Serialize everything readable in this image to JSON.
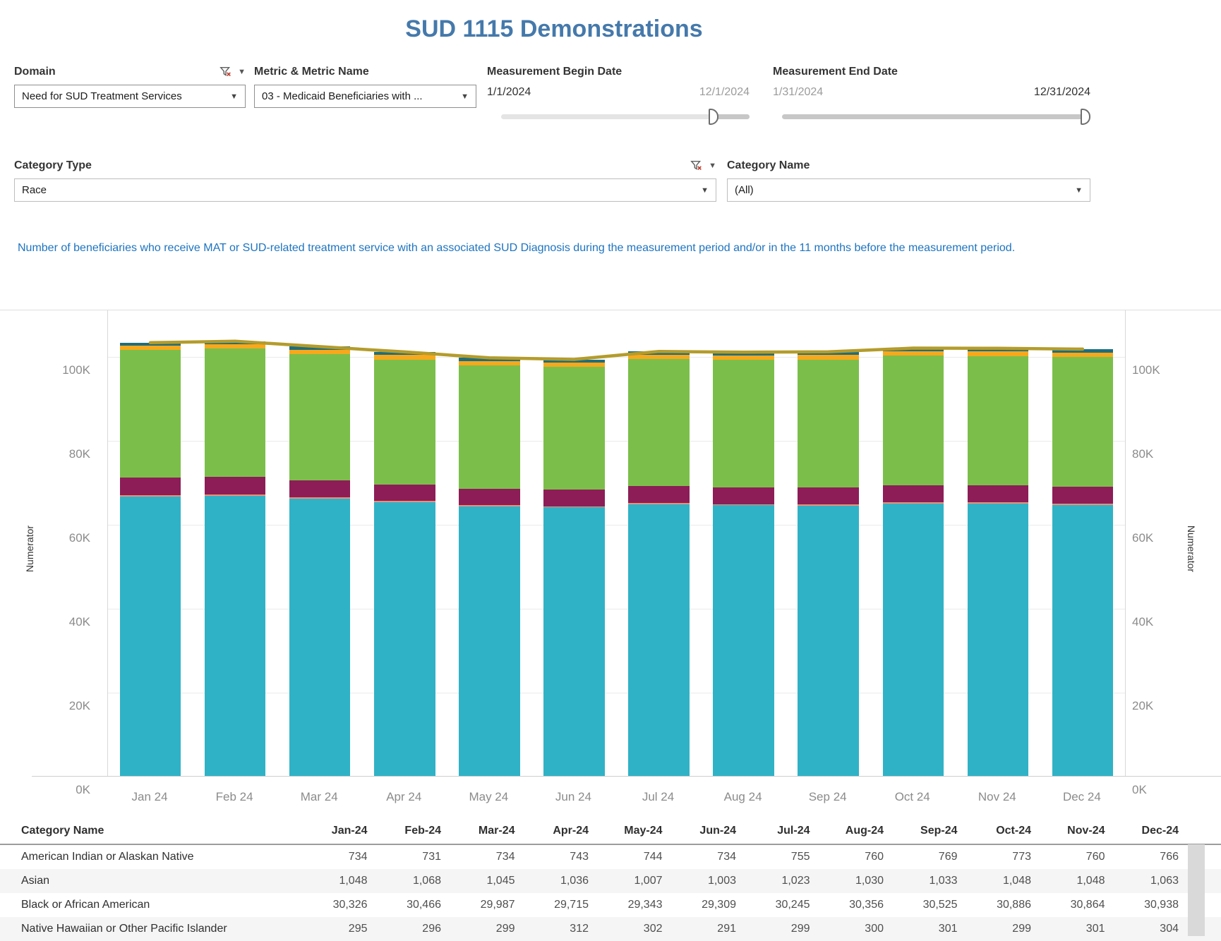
{
  "title": "SUD 1115 Demonstrations",
  "filters": {
    "domain": {
      "label": "Domain",
      "value": "Need for SUD Treatment Services"
    },
    "metric": {
      "label": "Metric & Metric Name",
      "value": "03 - Medicaid Beneficiaries with ..."
    },
    "begin_date": {
      "label": "Measurement Begin Date",
      "min": "1/1/2024",
      "max": "12/1/2024",
      "handle_pos": 0.857
    },
    "end_date": {
      "label": "Measurement End Date",
      "min": "1/31/2024",
      "max": "12/31/2024",
      "handle_pos": 1.0
    },
    "category_type": {
      "label": "Category Type",
      "value": "Race"
    },
    "category_name": {
      "label": "Category Name",
      "value": "(All)"
    }
  },
  "icons": {
    "funnel_clear": "filter-with-red-x",
    "caret": "▼"
  },
  "description": "Number of beneficiaries who receive MAT or SUD-related treatment service with an associated SUD Diagnosis during the measurement period and/or in the 11 months before the measurement period.",
  "chart_data": {
    "type": "bar",
    "stacked": true,
    "x": [
      "Jan 24",
      "Feb 24",
      "Mar 24",
      "Apr 24",
      "May 24",
      "Jun 24",
      "Jul 24",
      "Aug 24",
      "Sep 24",
      "Oct 24",
      "Nov 24",
      "Dec 24"
    ],
    "ylabel_left": "Numerator",
    "ylabel_right": "Numerator",
    "ylim": [
      0,
      111000
    ],
    "yticks": [
      {
        "label": "0K",
        "value": 0
      },
      {
        "label": "20K",
        "value": 20000
      },
      {
        "label": "40K",
        "value": 40000
      },
      {
        "label": "60K",
        "value": 60000
      },
      {
        "label": "80K",
        "value": 80000
      },
      {
        "label": "100K",
        "value": 100000
      }
    ],
    "grid": true,
    "legend": "not shown on screen",
    "series": [
      {
        "name": "(unlabeled bottom segment)",
        "color": "#30b2c6",
        "values": [
          66700,
          66900,
          66200,
          65300,
          64400,
          64100,
          64900,
          64600,
          64500,
          65000,
          65000,
          64700
        ]
      },
      {
        "name": "Native Hawaiian or Other Pacific Islander",
        "color": "#ea9178",
        "values": [
          295,
          296,
          299,
          312,
          302,
          291,
          299,
          300,
          301,
          299,
          301,
          304
        ]
      },
      {
        "name": "(unlabeled magenta segment)",
        "color": "#8c1d57",
        "values": [
          4200,
          4200,
          4100,
          4000,
          3900,
          3900,
          4000,
          4000,
          4000,
          4000,
          4000,
          4000
        ]
      },
      {
        "name": "Black or African American",
        "color": "#7bbf4a",
        "values": [
          30326,
          30466,
          29987,
          29715,
          29343,
          29309,
          30245,
          30356,
          30525,
          30886,
          30864,
          30938
        ]
      },
      {
        "name": "Asian",
        "color": "#f8a81c",
        "values": [
          1048,
          1068,
          1045,
          1036,
          1007,
          1003,
          1023,
          1030,
          1033,
          1048,
          1048,
          1063
        ]
      },
      {
        "name": "American Indian or Alaskan Native",
        "color": "#1d6e7e",
        "values": [
          734,
          731,
          734,
          743,
          744,
          734,
          755,
          760,
          769,
          773,
          760,
          766
        ]
      }
    ],
    "line_overlay": {
      "name": "total (olive line)",
      "color": "#b49c2b",
      "values": [
        103303,
        103661,
        102365,
        101106,
        99696,
        99337,
        101222,
        101046,
        101128,
        102006,
        101973,
        101771
      ]
    }
  },
  "table": {
    "label_header": "Category Name",
    "month_headers": [
      "Jan-24",
      "Feb-24",
      "Mar-24",
      "Apr-24",
      "May-24",
      "Jun-24",
      "Jul-24",
      "Aug-24",
      "Sep-24",
      "Oct-24",
      "Nov-24",
      "Dec-24"
    ],
    "rows": [
      {
        "label": "American Indian or Alaskan Native",
        "values": [
          "734",
          "731",
          "734",
          "743",
          "744",
          "734",
          "755",
          "760",
          "769",
          "773",
          "760",
          "766"
        ]
      },
      {
        "label": "Asian",
        "values": [
          "1,048",
          "1,068",
          "1,045",
          "1,036",
          "1,007",
          "1,003",
          "1,023",
          "1,030",
          "1,033",
          "1,048",
          "1,048",
          "1,063"
        ]
      },
      {
        "label": "Black or African American",
        "values": [
          "30,326",
          "30,466",
          "29,987",
          "29,715",
          "29,343",
          "29,309",
          "30,245",
          "30,356",
          "30,525",
          "30,886",
          "30,864",
          "30,938"
        ]
      },
      {
        "label": "Native Hawaiian or Other Pacific Islander",
        "values": [
          "295",
          "296",
          "299",
          "312",
          "302",
          "291",
          "299",
          "300",
          "301",
          "299",
          "301",
          "304"
        ]
      }
    ]
  }
}
